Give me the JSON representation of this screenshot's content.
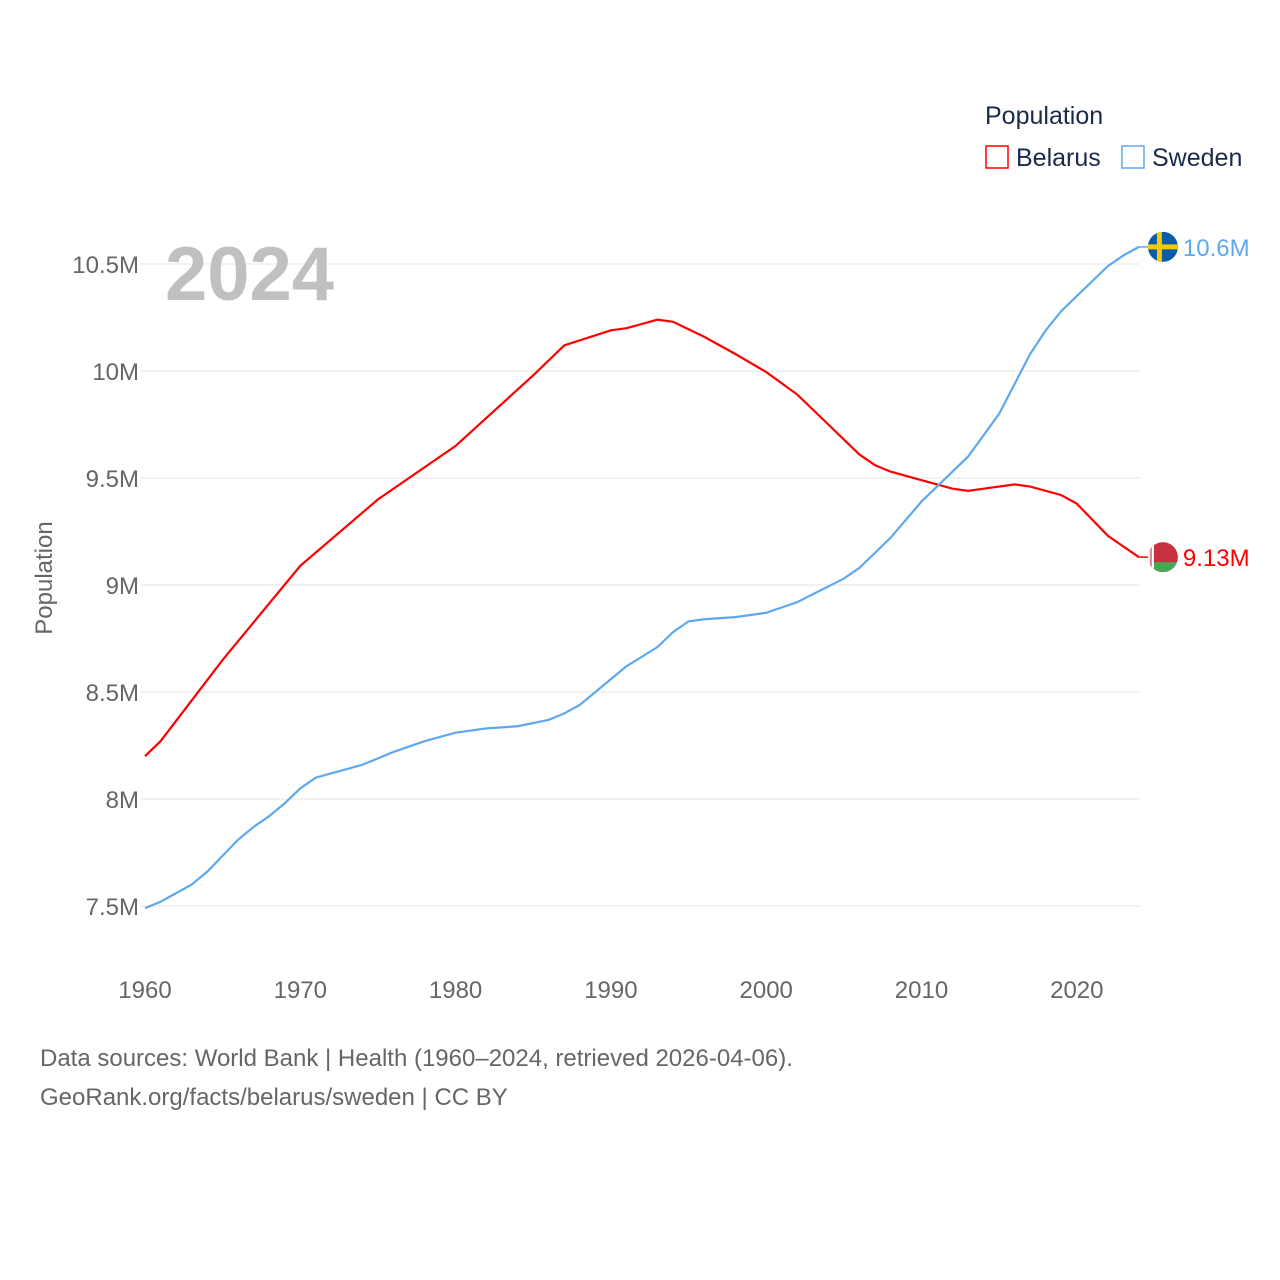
{
  "chart_data": {
    "type": "line",
    "title": "Population",
    "year_label": "2024",
    "xlabel": "",
    "ylabel": "Population",
    "xlim": [
      1960,
      2024
    ],
    "ylim": [
      7.25,
      10.65
    ],
    "x_ticks": [
      1960,
      1970,
      1980,
      1990,
      2000,
      2010,
      2020
    ],
    "x_tick_labels": [
      "1960",
      "1970",
      "1980",
      "1990",
      "2000",
      "2010",
      "2020"
    ],
    "y_ticks": [
      7.5,
      8,
      8.5,
      9,
      9.5,
      10,
      10.5
    ],
    "y_tick_labels": [
      "7.5M",
      "8M",
      "8.5M",
      "9M",
      "9.5M",
      "10M",
      "10.5M"
    ],
    "grid": true,
    "legend_placement": "top-right",
    "units": "millions",
    "series": [
      {
        "name": "Belarus",
        "color": "#ff0000",
        "end_label": "9.13M",
        "flag": "belarus-flag",
        "x": [
          1960,
          1961,
          1965,
          1970,
          1975,
          1980,
          1985,
          1987,
          1990,
          1991,
          1993,
          1994,
          1996,
          1998,
          2000,
          2002,
          2004,
          2006,
          2007,
          2008,
          2010,
          2012,
          2013,
          2014,
          2016,
          2017,
          2019,
          2020,
          2022,
          2023,
          2024
        ],
        "values": [
          8.2,
          8.27,
          8.65,
          9.09,
          9.4,
          9.65,
          9.98,
          10.12,
          10.19,
          10.2,
          10.24,
          10.23,
          10.16,
          10.08,
          9.995,
          9.89,
          9.75,
          9.61,
          9.56,
          9.53,
          9.49,
          9.45,
          9.44,
          9.45,
          9.47,
          9.46,
          9.42,
          9.38,
          9.23,
          9.18,
          9.13
        ]
      },
      {
        "name": "Sweden",
        "color": "#5ea8f0",
        "end_label": "10.6M",
        "flag": "sweden-flag",
        "x": [
          1960,
          1961,
          1963,
          1964,
          1966,
          1967,
          1968,
          1969,
          1970,
          1971,
          1972,
          1973,
          1974,
          1976,
          1978,
          1980,
          1982,
          1984,
          1986,
          1987,
          1988,
          1989,
          1990,
          1991,
          1993,
          1994,
          1995,
          1996,
          1998,
          2000,
          2002,
          2005,
          2006,
          2008,
          2010,
          2012,
          2013,
          2015,
          2016,
          2017,
          2018,
          2019,
          2020,
          2021,
          2022,
          2023,
          2024
        ],
        "values": [
          7.49,
          7.52,
          7.6,
          7.66,
          7.81,
          7.87,
          7.92,
          7.98,
          8.05,
          8.1,
          8.12,
          8.14,
          8.16,
          8.22,
          8.27,
          8.31,
          8.33,
          8.34,
          8.37,
          8.4,
          8.44,
          8.5,
          8.56,
          8.62,
          8.71,
          8.78,
          8.83,
          8.84,
          8.85,
          8.87,
          8.92,
          9.03,
          9.08,
          9.22,
          9.39,
          9.53,
          9.6,
          9.8,
          9.94,
          10.08,
          10.19,
          10.28,
          10.35,
          10.42,
          10.49,
          10.54,
          10.58
        ]
      }
    ]
  },
  "footer": {
    "line1": "Data sources: World Bank | Health (1960–2024, retrieved 2026-04-06).",
    "line2": "GeoRank.org/facts/belarus/sweden | CC BY"
  }
}
